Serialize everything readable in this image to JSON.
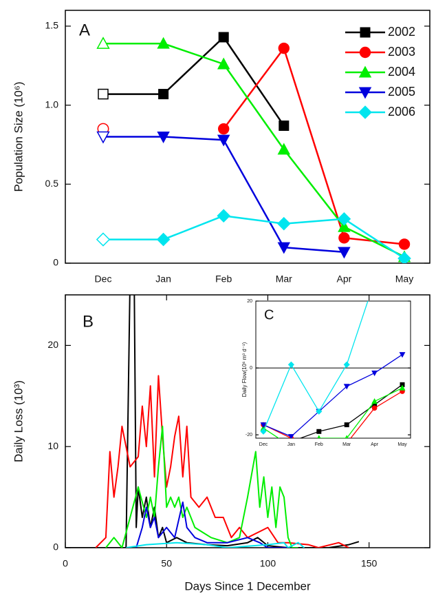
{
  "chart_data": [
    {
      "type": "line",
      "annotation": "A",
      "ylabel": "Population Size (10⁶)",
      "categories": [
        "Dec",
        "Jan",
        "Feb",
        "Mar",
        "Apr",
        "May"
      ],
      "ylim": [
        0,
        1.6
      ],
      "yticks": [
        0,
        0.5,
        {
          "value": 1,
          "label": "1.0"
        },
        1.5
      ],
      "hollow_first_point": true,
      "legend": "upper right",
      "series": [
        {
          "name": "2002",
          "color": "#000000",
          "marker": "square",
          "values": [
            1.07,
            1.07,
            1.43,
            0.87,
            null,
            null
          ]
        },
        {
          "name": "2003",
          "color": "#ff0000",
          "marker": "circle",
          "values": [
            0.85,
            null,
            0.85,
            1.36,
            0.16,
            0.12
          ]
        },
        {
          "name": "2004",
          "color": "#00ee00",
          "marker": "triangle-up",
          "values": [
            1.39,
            1.39,
            1.26,
            0.72,
            0.23,
            0.04
          ]
        },
        {
          "name": "2005",
          "color": "#0000dd",
          "marker": "triangle-down",
          "values": [
            0.8,
            0.8,
            0.78,
            0.1,
            0.07,
            null
          ]
        },
        {
          "name": "2006",
          "color": "#00e5ee",
          "marker": "diamond",
          "values": [
            0.15,
            0.15,
            0.3,
            0.25,
            0.28,
            0.03
          ]
        }
      ]
    },
    {
      "type": "line",
      "annotation": "B",
      "ylabel": "Daily Loss (10³)",
      "xlabel": "Days Since 1 December",
      "xlim": [
        0,
        180
      ],
      "xticks": [
        0,
        50,
        100,
        150
      ],
      "ylim": [
        0,
        25
      ],
      "yticks": [
        0,
        10,
        20
      ],
      "series": [
        {
          "color": "#000000",
          "x": [
            0,
            30,
            32,
            34,
            35,
            36,
            38,
            40,
            42,
            44,
            46,
            48,
            50,
            55,
            60,
            70,
            80,
            90,
            95,
            100,
            110,
            130,
            140,
            145
          ],
          "values": [
            0,
            0,
            27,
            27,
            2,
            6,
            3,
            5,
            2,
            4,
            1,
            2,
            0.5,
            1,
            0.5,
            0.3,
            0.2,
            0.5,
            1,
            0.2,
            0,
            0,
            0.3,
            0.6
          ]
        },
        {
          "color": "#ff0000",
          "x": [
            15,
            20,
            22,
            24,
            26,
            28,
            30,
            32,
            36,
            38,
            40,
            42,
            44,
            46,
            48,
            50,
            52,
            54,
            56,
            58,
            60,
            62,
            66,
            70,
            74,
            78,
            82,
            86,
            90,
            95,
            100,
            105,
            110,
            120,
            125,
            135,
            140
          ],
          "values": [
            0,
            1,
            9.5,
            5,
            8,
            12,
            10,
            8,
            9,
            14,
            10,
            16,
            7,
            17,
            11,
            6,
            8,
            11,
            13,
            7,
            12,
            5,
            4,
            5,
            3,
            3,
            1,
            2,
            1,
            1.5,
            2,
            0.5,
            0.5,
            0.3,
            0,
            0.5,
            0
          ]
        },
        {
          "color": "#00ee00",
          "x": [
            20,
            24,
            28,
            32,
            36,
            40,
            42,
            44,
            46,
            48,
            50,
            52,
            54,
            56,
            58,
            60,
            64,
            68,
            72,
            80,
            86,
            90,
            94,
            96,
            98,
            100,
            102,
            104,
            106,
            108,
            110,
            112,
            115
          ],
          "values": [
            0,
            1,
            0,
            3,
            6,
            3,
            5,
            3,
            8,
            12,
            4,
            5,
            4,
            5,
            3,
            4,
            2,
            1.5,
            1,
            0.5,
            1,
            5,
            9.5,
            4,
            7,
            3,
            6,
            2,
            6,
            5,
            1,
            0,
            0
          ]
        },
        {
          "color": "#0000dd",
          "x": [
            35,
            38,
            40,
            42,
            44,
            46,
            50,
            54,
            58,
            60,
            64,
            70,
            80,
            90,
            96,
            100,
            110
          ],
          "values": [
            0,
            2,
            4,
            2,
            3,
            1,
            2,
            1,
            4.5,
            2,
            1,
            0.5,
            0.5,
            1,
            0.5,
            0,
            0
          ]
        },
        {
          "color": "#00e5ee",
          "x": [
            30,
            40,
            55,
            70,
            80,
            100,
            108,
            110,
            115,
            118
          ],
          "values": [
            0,
            0.3,
            0.5,
            0.3,
            0,
            0.3,
            0.5,
            0,
            0.5,
            0
          ]
        }
      ]
    },
    {
      "type": "line",
      "annotation": "C",
      "ylabel": "Daily Flow(10⁶ m³ d⁻¹)",
      "categories": [
        "Dec",
        "Jan",
        "Feb",
        "Mar",
        "Apr",
        "May"
      ],
      "ylim": [
        -21,
        20
      ],
      "yticks": [
        -20,
        0,
        20
      ],
      "zero_line": true,
      "series": [
        {
          "color": "#000000",
          "marker": "square",
          "values": [
            -22,
            -22,
            -19,
            -17,
            -11,
            -5
          ]
        },
        {
          "color": "#ff0000",
          "marker": "circle",
          "values": [
            -17,
            -21,
            -23,
            -22.5,
            -12,
            -7
          ]
        },
        {
          "color": "#00ee00",
          "marker": "triangle-up",
          "values": [
            -18,
            -23.5,
            -21,
            -21,
            -10,
            -6
          ]
        },
        {
          "color": "#0000dd",
          "marker": "triangle-down",
          "values": [
            -17,
            -20.5,
            -13,
            -5.5,
            -1.5,
            4
          ]
        },
        {
          "color": "#00e5ee",
          "marker": "diamond",
          "values": [
            -19,
            1,
            -13,
            1,
            26,
            null
          ]
        }
      ]
    }
  ]
}
